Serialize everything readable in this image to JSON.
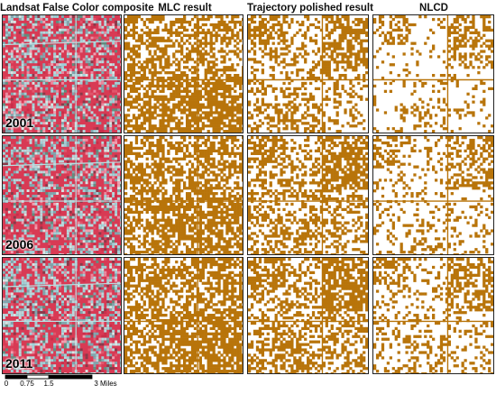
{
  "headers": {
    "composite": "Landsat False Color composite",
    "mlc": "MLC result",
    "trajectory": "Trajectory polished result",
    "nlcd": "NLCD"
  },
  "rows": [
    {
      "year": "2001"
    },
    {
      "year": "2006"
    },
    {
      "year": "2011"
    }
  ],
  "scale_bar": {
    "labels": [
      "0",
      "0.75",
      "1.5",
      "3 Miles"
    ]
  },
  "colors": {
    "urban": "#b8740a",
    "composite_red": "#d83a54",
    "composite_cyan": "#9fd2d8",
    "background": "#ffffff"
  }
}
